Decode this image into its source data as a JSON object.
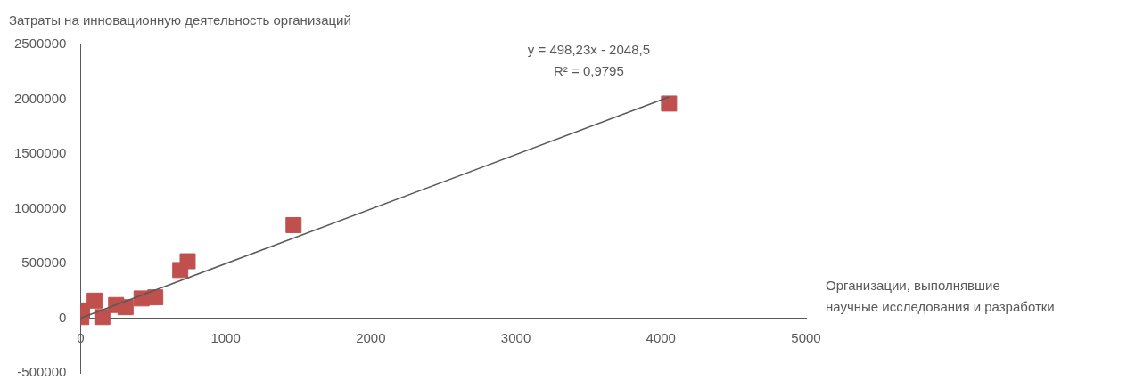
{
  "chart_data": {
    "type": "scatter",
    "ylabel": "Затраты на инновационную деятельность организаций",
    "xlabel": "Организации, выполнявшие научные исследования и разработки",
    "annotations": [
      "y = 498,23x - 2048,5",
      "R² = 0,9795"
    ],
    "xlim": [
      0,
      5000
    ],
    "xticks": [
      0,
      1000,
      2000,
      3000,
      4000,
      5000
    ],
    "ylim": [
      -500000,
      2500000
    ],
    "yticks": [
      -500000,
      0,
      500000,
      1000000,
      1500000,
      2000000,
      2500000
    ],
    "grid": false,
    "legend": false,
    "marker": "square",
    "series": [
      {
        "color": "#c0504d",
        "x": [
          5,
          10,
          97,
          150,
          245,
          310,
          420,
          515,
          687,
          738,
          1468,
          4056
        ],
        "values": [
          10000,
          70000,
          160000,
          10000,
          120000,
          100000,
          180000,
          190000,
          440000,
          520000,
          850000,
          1960000
        ]
      },
      {
        "type": "line",
        "color": "#595959",
        "marker": "none",
        "x": [
          0,
          4056
        ],
        "values": [
          0,
          2020000
        ]
      }
    ]
  }
}
